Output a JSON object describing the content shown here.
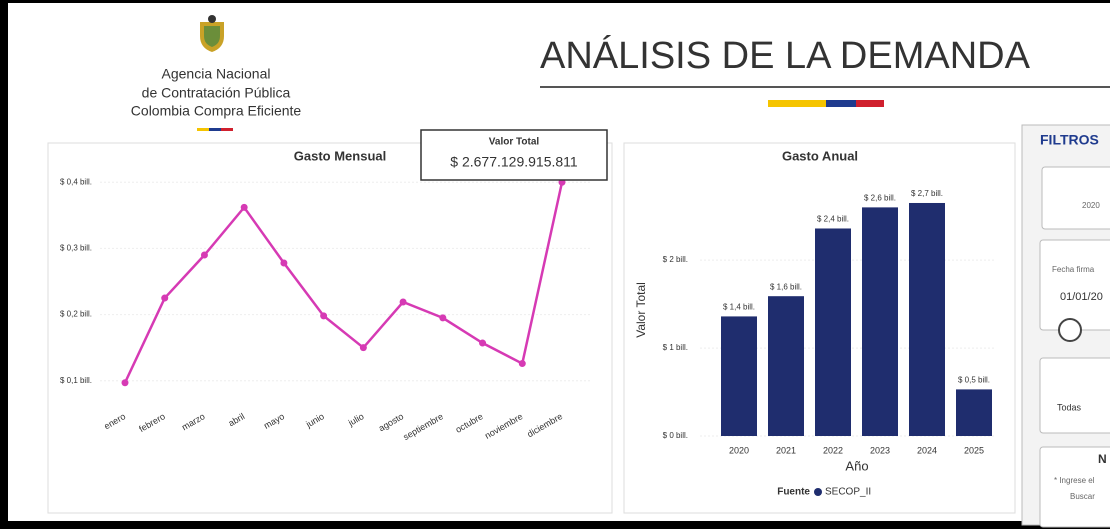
{
  "header": {
    "agency": [
      "Agencia Nacional",
      "de Contratación Pública",
      "Colombia Compra Eficiente"
    ],
    "title": "ANÁLISIS DE LA DEMANDA"
  },
  "card": {
    "label": "Valor Total",
    "value": "$ 2.677.129.915.811"
  },
  "filters": {
    "title": "FILTROS",
    "year": "2020",
    "date_label": "Fecha firma",
    "date": "01/01/20",
    "all": "Todas",
    "section": "N",
    "hint": "* Ingrese el",
    "search": "Buscar"
  },
  "chart_data": [
    {
      "type": "line",
      "title": "Gasto Mensual",
      "color": "#d63ab4",
      "categories": [
        "enero",
        "febrero",
        "marzo",
        "abril",
        "mayo",
        "junio",
        "julio",
        "agosto",
        "septiembre",
        "octubre",
        "noviembre",
        "diciembre"
      ],
      "values": [
        0.097,
        0.225,
        0.29,
        0.362,
        0.278,
        0.198,
        0.15,
        0.219,
        0.195,
        0.157,
        0.126,
        0.4
      ],
      "ylim": [
        0.08,
        0.42
      ],
      "yticks": [
        {
          "value": 0.1,
          "label": "$ 0,1 bill."
        },
        {
          "value": 0.2,
          "label": "$ 0,2 bill."
        },
        {
          "value": 0.3,
          "label": "$ 0,3 bill."
        },
        {
          "value": 0.4,
          "label": "$ 0,4 bill."
        }
      ],
      "grid": true
    },
    {
      "type": "bar",
      "title": "Gasto Anual",
      "color": "#1f2d6e",
      "xlabel": "Año",
      "ylabel": "Valor Total",
      "categories": [
        "2020",
        "2021",
        "2022",
        "2023",
        "2024",
        "2025"
      ],
      "values": [
        1.36,
        1.59,
        2.36,
        2.6,
        2.65,
        0.53
      ],
      "value_labels": [
        "$ 1,4 bill.",
        "$ 1,6 bill.",
        "$ 2,4 bill.",
        "$ 2,6 bill.",
        "$ 2,7 bill.",
        "$ 0,5 bill."
      ],
      "ylim": [
        0,
        2.9
      ],
      "yticks": [
        {
          "value": 0,
          "label": "$ 0 bill."
        },
        {
          "value": 1,
          "label": "$ 1 bill."
        },
        {
          "value": 2,
          "label": "$ 2 bill."
        }
      ],
      "grid": true,
      "legend_title": "Fuente",
      "series_name": "SECOP_II"
    }
  ]
}
